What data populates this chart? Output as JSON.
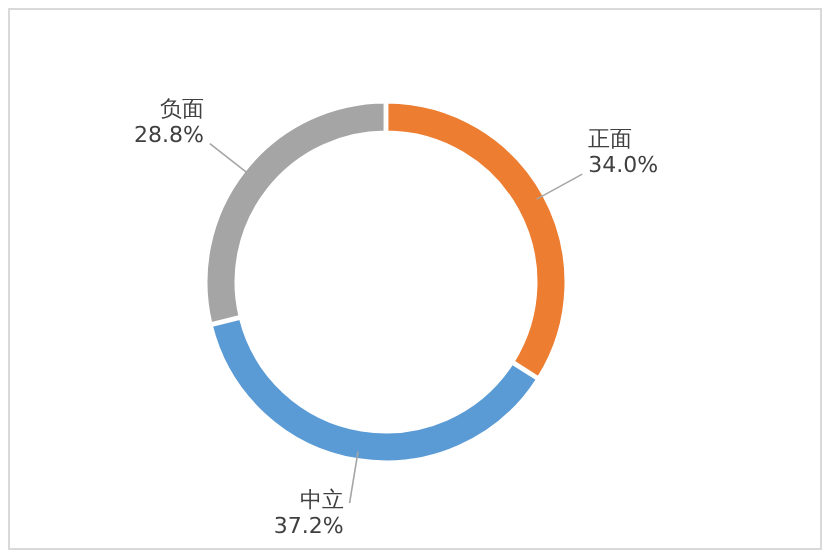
{
  "chart_data": {
    "type": "donut",
    "categories": [
      "正面",
      "中立",
      "负面"
    ],
    "values": [
      34.0,
      37.2,
      28.8
    ],
    "value_labels": [
      "34.0%",
      "37.2%",
      "28.8%"
    ],
    "colors": [
      "#ed7d31",
      "#5b9bd5",
      "#a5a5a5"
    ]
  }
}
